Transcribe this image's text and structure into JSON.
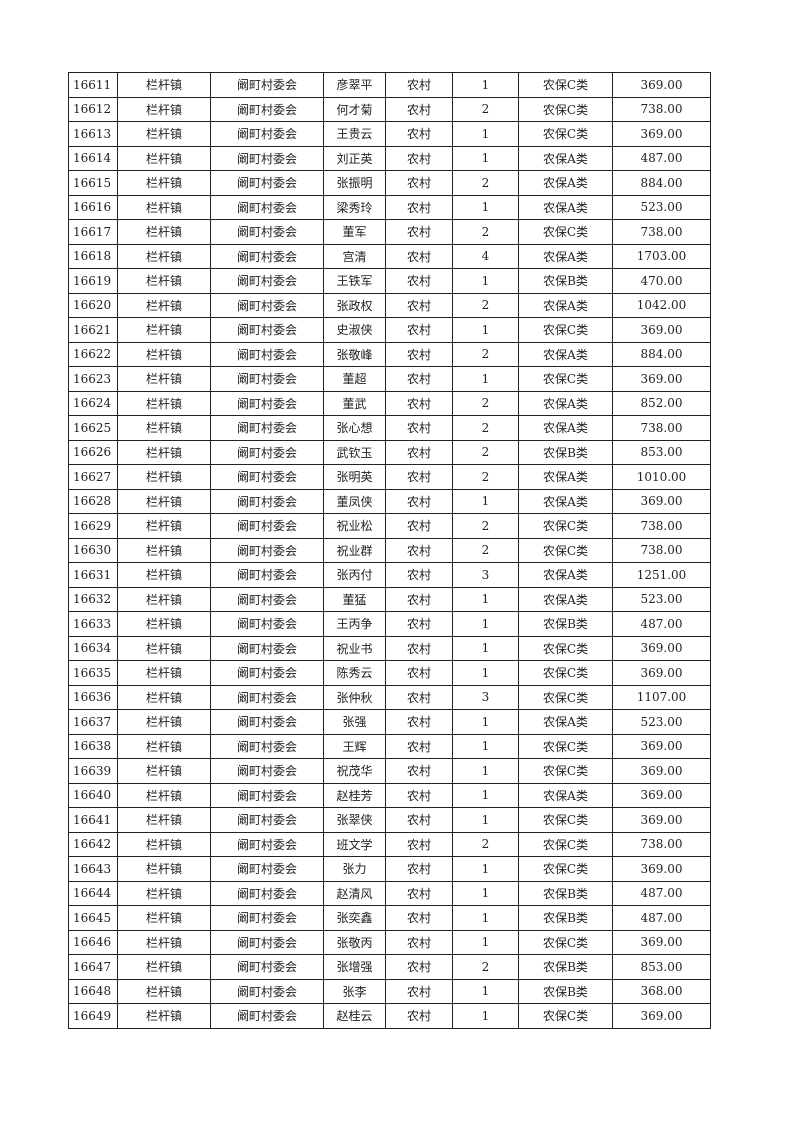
{
  "table": {
    "rows": [
      [
        "16611",
        "栏杆镇",
        "阚町村委会",
        "彦翠平",
        "农村",
        "1",
        "农保C类",
        "369.00"
      ],
      [
        "16612",
        "栏杆镇",
        "阚町村委会",
        "何才菊",
        "农村",
        "2",
        "农保C类",
        "738.00"
      ],
      [
        "16613",
        "栏杆镇",
        "阚町村委会",
        "王贵云",
        "农村",
        "1",
        "农保C类",
        "369.00"
      ],
      [
        "16614",
        "栏杆镇",
        "阚町村委会",
        "刘正英",
        "农村",
        "1",
        "农保A类",
        "487.00"
      ],
      [
        "16615",
        "栏杆镇",
        "阚町村委会",
        "张振明",
        "农村",
        "2",
        "农保A类",
        "884.00"
      ],
      [
        "16616",
        "栏杆镇",
        "阚町村委会",
        "梁秀玲",
        "农村",
        "1",
        "农保A类",
        "523.00"
      ],
      [
        "16617",
        "栏杆镇",
        "阚町村委会",
        "董军",
        "农村",
        "2",
        "农保C类",
        "738.00"
      ],
      [
        "16618",
        "栏杆镇",
        "阚町村委会",
        "宫清",
        "农村",
        "4",
        "农保A类",
        "1703.00"
      ],
      [
        "16619",
        "栏杆镇",
        "阚町村委会",
        "王铁军",
        "农村",
        "1",
        "农保B类",
        "470.00"
      ],
      [
        "16620",
        "栏杆镇",
        "阚町村委会",
        "张政权",
        "农村",
        "2",
        "农保A类",
        "1042.00"
      ],
      [
        "16621",
        "栏杆镇",
        "阚町村委会",
        "史淑侠",
        "农村",
        "1",
        "农保C类",
        "369.00"
      ],
      [
        "16622",
        "栏杆镇",
        "阚町村委会",
        "张敬峰",
        "农村",
        "2",
        "农保A类",
        "884.00"
      ],
      [
        "16623",
        "栏杆镇",
        "阚町村委会",
        "董超",
        "农村",
        "1",
        "农保C类",
        "369.00"
      ],
      [
        "16624",
        "栏杆镇",
        "阚町村委会",
        "董武",
        "农村",
        "2",
        "农保A类",
        "852.00"
      ],
      [
        "16625",
        "栏杆镇",
        "阚町村委会",
        "张心想",
        "农村",
        "2",
        "农保A类",
        "738.00"
      ],
      [
        "16626",
        "栏杆镇",
        "阚町村委会",
        "武钦玉",
        "农村",
        "2",
        "农保B类",
        "853.00"
      ],
      [
        "16627",
        "栏杆镇",
        "阚町村委会",
        "张明英",
        "农村",
        "2",
        "农保A类",
        "1010.00"
      ],
      [
        "16628",
        "栏杆镇",
        "阚町村委会",
        "董凤侠",
        "农村",
        "1",
        "农保A类",
        "369.00"
      ],
      [
        "16629",
        "栏杆镇",
        "阚町村委会",
        "祝业松",
        "农村",
        "2",
        "农保C类",
        "738.00"
      ],
      [
        "16630",
        "栏杆镇",
        "阚町村委会",
        "祝业群",
        "农村",
        "2",
        "农保C类",
        "738.00"
      ],
      [
        "16631",
        "栏杆镇",
        "阚町村委会",
        "张丙付",
        "农村",
        "3",
        "农保A类",
        "1251.00"
      ],
      [
        "16632",
        "栏杆镇",
        "阚町村委会",
        "董猛",
        "农村",
        "1",
        "农保A类",
        "523.00"
      ],
      [
        "16633",
        "栏杆镇",
        "阚町村委会",
        "王丙争",
        "农村",
        "1",
        "农保B类",
        "487.00"
      ],
      [
        "16634",
        "栏杆镇",
        "阚町村委会",
        "祝业书",
        "农村",
        "1",
        "农保C类",
        "369.00"
      ],
      [
        "16635",
        "栏杆镇",
        "阚町村委会",
        "陈秀云",
        "农村",
        "1",
        "农保C类",
        "369.00"
      ],
      [
        "16636",
        "栏杆镇",
        "阚町村委会",
        "张仲秋",
        "农村",
        "3",
        "农保C类",
        "1107.00"
      ],
      [
        "16637",
        "栏杆镇",
        "阚町村委会",
        "张强",
        "农村",
        "1",
        "农保A类",
        "523.00"
      ],
      [
        "16638",
        "栏杆镇",
        "阚町村委会",
        "王辉",
        "农村",
        "1",
        "农保C类",
        "369.00"
      ],
      [
        "16639",
        "栏杆镇",
        "阚町村委会",
        "祝茂华",
        "农村",
        "1",
        "农保C类",
        "369.00"
      ],
      [
        "16640",
        "栏杆镇",
        "阚町村委会",
        "赵桂芳",
        "农村",
        "1",
        "农保A类",
        "369.00"
      ],
      [
        "16641",
        "栏杆镇",
        "阚町村委会",
        "张翠侠",
        "农村",
        "1",
        "农保C类",
        "369.00"
      ],
      [
        "16642",
        "栏杆镇",
        "阚町村委会",
        "班文学",
        "农村",
        "2",
        "农保C类",
        "738.00"
      ],
      [
        "16643",
        "栏杆镇",
        "阚町村委会",
        "张力",
        "农村",
        "1",
        "农保C类",
        "369.00"
      ],
      [
        "16644",
        "栏杆镇",
        "阚町村委会",
        "赵清风",
        "农村",
        "1",
        "农保B类",
        "487.00"
      ],
      [
        "16645",
        "栏杆镇",
        "阚町村委会",
        "张奕鑫",
        "农村",
        "1",
        "农保B类",
        "487.00"
      ],
      [
        "16646",
        "栏杆镇",
        "阚町村委会",
        "张敬丙",
        "农村",
        "1",
        "农保C类",
        "369.00"
      ],
      [
        "16647",
        "栏杆镇",
        "阚町村委会",
        "张增强",
        "农村",
        "2",
        "农保B类",
        "853.00"
      ],
      [
        "16648",
        "栏杆镇",
        "阚町村委会",
        "张李",
        "农村",
        "1",
        "农保B类",
        "368.00"
      ],
      [
        "16649",
        "栏杆镇",
        "阚町村委会",
        "赵桂云",
        "农村",
        "1",
        "农保C类",
        "369.00"
      ]
    ]
  }
}
